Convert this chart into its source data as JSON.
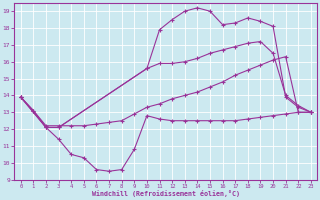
{
  "xlabel": "Windchill (Refroidissement éolien,°C)",
  "bg_color": "#cce9f0",
  "line_color": "#993399",
  "grid_color": "#b0d8e0",
  "xlim": [
    -0.5,
    23.5
  ],
  "ylim": [
    9,
    19.5
  ],
  "yticks": [
    9,
    10,
    11,
    12,
    13,
    14,
    15,
    16,
    17,
    18,
    19
  ],
  "xticks": [
    0,
    1,
    2,
    3,
    4,
    5,
    6,
    7,
    8,
    9,
    10,
    11,
    12,
    13,
    14,
    15,
    16,
    17,
    18,
    19,
    20,
    21,
    22,
    23
  ],
  "series": [
    {
      "x": [
        0,
        1,
        2,
        3,
        4,
        5,
        6,
        7,
        8,
        9,
        10,
        11,
        12,
        13,
        14,
        15,
        16,
        17,
        18,
        19,
        20,
        21,
        22,
        23
      ],
      "y": [
        13.9,
        13.1,
        12.1,
        11.4,
        10.5,
        10.3,
        9.6,
        9.5,
        9.6,
        10.8,
        12.8,
        12.6,
        12.5,
        12.5,
        12.5,
        12.5,
        12.5,
        12.5,
        12.6,
        12.7,
        12.8,
        12.9,
        13.0,
        13.0
      ]
    },
    {
      "x": [
        0,
        1,
        2,
        3,
        4,
        5,
        6,
        7,
        8,
        9,
        10,
        11,
        12,
        13,
        14,
        15,
        16,
        17,
        18,
        19,
        20,
        21,
        22,
        23
      ],
      "y": [
        13.9,
        13.1,
        12.2,
        12.2,
        12.2,
        12.2,
        12.3,
        12.4,
        12.5,
        12.9,
        13.3,
        13.5,
        13.8,
        14.0,
        14.2,
        14.5,
        14.8,
        15.2,
        15.5,
        15.8,
        16.1,
        16.3,
        13.0,
        13.0
      ]
    },
    {
      "x": [
        0,
        2,
        3,
        10,
        11,
        12,
        13,
        14,
        15,
        16,
        17,
        18,
        19,
        20,
        21,
        22,
        23
      ],
      "y": [
        13.9,
        12.1,
        12.1,
        15.6,
        15.9,
        15.9,
        16.0,
        16.2,
        16.5,
        16.7,
        16.9,
        17.1,
        17.2,
        16.5,
        14.0,
        13.4,
        13.0
      ]
    },
    {
      "x": [
        0,
        2,
        3,
        10,
        11,
        12,
        13,
        14,
        15,
        16,
        17,
        18,
        19,
        20,
        21,
        22,
        23
      ],
      "y": [
        13.9,
        12.1,
        12.1,
        15.6,
        17.9,
        18.5,
        19.0,
        19.2,
        19.0,
        18.2,
        18.3,
        18.6,
        18.4,
        18.1,
        13.9,
        13.3,
        13.0
      ]
    }
  ]
}
